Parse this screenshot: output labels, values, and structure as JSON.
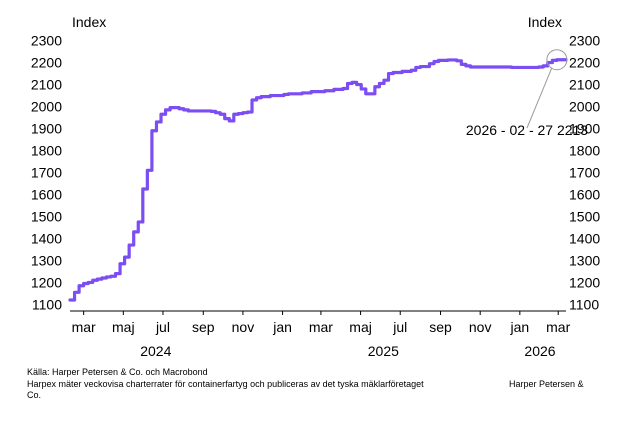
{
  "chart_data": {
    "type": "line",
    "y_unit_left": "Index",
    "y_unit_right": "Index",
    "ylim": [
      1070,
      2330
    ],
    "yticks": [
      1100,
      1200,
      1300,
      1400,
      1500,
      1600,
      1700,
      1800,
      1900,
      2000,
      2100,
      2200,
      2300
    ],
    "x_range": [
      "2024-02-09",
      "2026-03-13"
    ],
    "month_ticks": [
      {
        "date": "2024-03-01",
        "label": "mar"
      },
      {
        "date": "2024-05-01",
        "label": "maj"
      },
      {
        "date": "2024-07-01",
        "label": "jul"
      },
      {
        "date": "2024-09-01",
        "label": "sep"
      },
      {
        "date": "2024-11-01",
        "label": "nov"
      },
      {
        "date": "2025-01-01",
        "label": "jan"
      },
      {
        "date": "2025-03-01",
        "label": "mar"
      },
      {
        "date": "2025-05-01",
        "label": "maj"
      },
      {
        "date": "2025-07-01",
        "label": "jul"
      },
      {
        "date": "2025-09-01",
        "label": "sep"
      },
      {
        "date": "2025-11-01",
        "label": "nov"
      },
      {
        "date": "2026-01-01",
        "label": "jan"
      },
      {
        "date": "2026-03-01",
        "label": "mar"
      }
    ],
    "year_labels": [
      {
        "date": "2024-06-20",
        "label": "2024"
      },
      {
        "date": "2025-06-05",
        "label": "2025"
      },
      {
        "date": "2026-02-01",
        "label": "2026"
      }
    ],
    "series": [
      {
        "color": "#7b4df3",
        "step": true,
        "points": [
          [
            "2024-02-09",
            1120
          ],
          [
            "2024-02-16",
            1155
          ],
          [
            "2024-02-23",
            1185
          ],
          [
            "2024-03-01",
            1195
          ],
          [
            "2024-03-08",
            1200
          ],
          [
            "2024-03-15",
            1210
          ],
          [
            "2024-03-22",
            1215
          ],
          [
            "2024-03-29",
            1220
          ],
          [
            "2024-04-05",
            1225
          ],
          [
            "2024-04-12",
            1228
          ],
          [
            "2024-04-19",
            1240
          ],
          [
            "2024-04-26",
            1285
          ],
          [
            "2024-05-03",
            1315
          ],
          [
            "2024-05-10",
            1370
          ],
          [
            "2024-05-17",
            1430
          ],
          [
            "2024-05-24",
            1475
          ],
          [
            "2024-05-31",
            1625
          ],
          [
            "2024-06-07",
            1710
          ],
          [
            "2024-06-14",
            1890
          ],
          [
            "2024-06-21",
            1930
          ],
          [
            "2024-06-28",
            1965
          ],
          [
            "2024-07-05",
            1985
          ],
          [
            "2024-07-12",
            1995
          ],
          [
            "2024-07-26",
            1990
          ],
          [
            "2024-08-02",
            1985
          ],
          [
            "2024-08-09",
            1980
          ],
          [
            "2024-09-13",
            1978
          ],
          [
            "2024-09-20",
            1972
          ],
          [
            "2024-09-27",
            1965
          ],
          [
            "2024-10-04",
            1945
          ],
          [
            "2024-10-11",
            1935
          ],
          [
            "2024-10-18",
            1965
          ],
          [
            "2024-10-25",
            1968
          ],
          [
            "2024-11-01",
            1972
          ],
          [
            "2024-11-08",
            1975
          ],
          [
            "2024-11-15",
            2030
          ],
          [
            "2024-11-22",
            2040
          ],
          [
            "2024-11-29",
            2045
          ],
          [
            "2024-12-13",
            2050
          ],
          [
            "2025-01-03",
            2055
          ],
          [
            "2025-01-10",
            2058
          ],
          [
            "2025-01-31",
            2062
          ],
          [
            "2025-02-14",
            2068
          ],
          [
            "2025-03-07",
            2072
          ],
          [
            "2025-03-21",
            2078
          ],
          [
            "2025-04-04",
            2082
          ],
          [
            "2025-04-11",
            2105
          ],
          [
            "2025-04-18",
            2110
          ],
          [
            "2025-04-25",
            2100
          ],
          [
            "2025-05-02",
            2080
          ],
          [
            "2025-05-09",
            2058
          ],
          [
            "2025-05-23",
            2090
          ],
          [
            "2025-05-30",
            2105
          ],
          [
            "2025-06-06",
            2120
          ],
          [
            "2025-06-13",
            2150
          ],
          [
            "2025-06-20",
            2155
          ],
          [
            "2025-07-04",
            2160
          ],
          [
            "2025-07-18",
            2165
          ],
          [
            "2025-07-25",
            2178
          ],
          [
            "2025-08-01",
            2182
          ],
          [
            "2025-08-15",
            2195
          ],
          [
            "2025-08-22",
            2205
          ],
          [
            "2025-08-29",
            2210
          ],
          [
            "2025-09-12",
            2212
          ],
          [
            "2025-09-26",
            2208
          ],
          [
            "2025-10-03",
            2192
          ],
          [
            "2025-10-10",
            2185
          ],
          [
            "2025-10-17",
            2180
          ],
          [
            "2025-12-19",
            2178
          ],
          [
            "2026-01-30",
            2180
          ],
          [
            "2026-02-06",
            2185
          ],
          [
            "2026-02-13",
            2200
          ],
          [
            "2026-02-20",
            2210
          ],
          [
            "2026-02-27",
            2213
          ],
          [
            "2026-03-13",
            2213
          ]
        ]
      }
    ],
    "annotation": {
      "date": "2026-02-27",
      "value": 2213,
      "label": "2026 - 02 - 27 2213"
    }
  },
  "texts": {
    "unit_left": "Index",
    "unit_right": "Index",
    "source": "Källa: Harper Petersen & Co.  och Macrobond",
    "note_a": "Harpex mäter veckovisa charterrater för containerfartyg och publiceras av det tyska mäklarföretaget",
    "note_b": "Harper Petersen &",
    "note_c": "Co."
  }
}
